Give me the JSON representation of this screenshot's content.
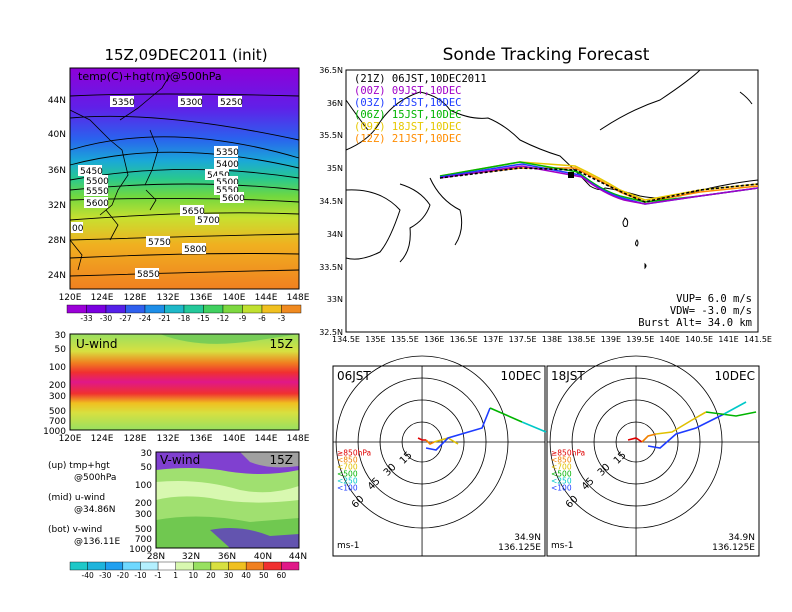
{
  "left_title": "15Z,09DEC2011 (init)",
  "right_title": "Sonde Tracking Forecast",
  "top_map": {
    "label": "temp(C)+hgt(m)@500hPa",
    "lat_ticks": [
      "44N",
      "40N",
      "36N",
      "32N",
      "28N",
      "24N"
    ],
    "lon_ticks": [
      "120E",
      "124E",
      "128E",
      "132E",
      "136E",
      "140E",
      "144E",
      "148E"
    ],
    "contour_labels": [
      "5350",
      "5300",
      "5250",
      "5350",
      "5400",
      "5450",
      "5500",
      "5550",
      "5600",
      "5450",
      "5500",
      "5550",
      "5600",
      "5650",
      "5700",
      "5750",
      "5800",
      "5850",
      "00",
      "5260"
    ]
  },
  "temp_colorbar": {
    "labels": [
      "-33",
      "-30",
      "-27",
      "-24",
      "-21",
      "-18",
      "-15",
      "-12",
      "-9",
      "-6",
      "-3"
    ],
    "colors": [
      "#9b00d8",
      "#7a00e0",
      "#5520e8",
      "#2f60ee",
      "#1e8ee8",
      "#1fb8c8",
      "#24c89a",
      "#40d060",
      "#7dd840",
      "#c0e030",
      "#f0c020",
      "#f08a20"
    ]
  },
  "uwind": {
    "label": "U-wind",
    "time": "15Z",
    "y_ticks": [
      "30",
      "50",
      "100",
      "200",
      "300",
      "500",
      "700",
      "1000"
    ],
    "x_ticks": [
      "120E",
      "124E",
      "128E",
      "132E",
      "136E",
      "140E",
      "144E",
      "148E"
    ]
  },
  "vwind": {
    "label": "V-wind",
    "time": "15Z",
    "y_ticks": [
      "30",
      "50",
      "100",
      "200",
      "300",
      "500",
      "700",
      "1000"
    ],
    "x_ticks": [
      "28N",
      "32N",
      "36N",
      "40N",
      "44N"
    ]
  },
  "legend_text": {
    "up": "(up) tmp+hgt",
    "up2": "@500hPa",
    "mid": "(mid) u-wind",
    "mid2": "@34.86N",
    "bot": "(bot) v-wind",
    "bot2": "@136.11E"
  },
  "wind_colorbar": {
    "labels": [
      "-40",
      "-30",
      "-20",
      "-10",
      "-1",
      "1",
      "10",
      "20",
      "30",
      "40",
      "50",
      "60"
    ],
    "colors": [
      "#1ec8c8",
      "#1eb4dc",
      "#20a0f0",
      "#6ed8ff",
      "#b4f0ff",
      "#ffffff",
      "#d8f8b0",
      "#98e060",
      "#d8e040",
      "#f0c020",
      "#f08020",
      "#f03030",
      "#e01888"
    ]
  },
  "track_map": {
    "lat_ticks": [
      "36.5N",
      "36N",
      "35.5N",
      "35N",
      "34.5N",
      "34N",
      "33.5N",
      "33N",
      "32.5N"
    ],
    "lon_ticks": [
      "134.5E",
      "135E",
      "135.5E",
      "136E",
      "136.5E",
      "137E",
      "137.5E",
      "138E",
      "138.5E",
      "139E",
      "139.5E",
      "140E",
      "140.5E",
      "141E",
      "141.5E"
    ],
    "legend": [
      {
        "text": "(21Z)  06JST,10DEC2011",
        "color": "#000000"
      },
      {
        "text": "(00Z)  09JST,10DEC",
        "color": "#a000c8"
      },
      {
        "text": "(03Z)  12JST,10DEC",
        "color": "#1e3cff"
      },
      {
        "text": "(06Z)  15JST,10DEC",
        "color": "#00b400"
      },
      {
        "text": "(09Z)  18JST,10DEC",
        "color": "#e6c800"
      },
      {
        "text": "(12Z)  21JST,10DEC",
        "color": "#ff8c00"
      }
    ],
    "info": [
      "VUP=  6.0 m/s",
      "VDW= -3.0 m/s",
      "Burst Alt= 34.0 km"
    ]
  },
  "hodo1": {
    "time": "06JST",
    "date": "10DEC",
    "rings": [
      "15",
      "30",
      "45",
      "60"
    ],
    "levels": [
      "≥850hPa",
      "<850",
      "<700",
      "<500",
      "<250",
      "<100"
    ],
    "level_colors": [
      "#e00000",
      "#f08000",
      "#e0c000",
      "#00b400",
      "#00c8c8",
      "#1e3cff"
    ],
    "unit": "ms-1",
    "lat": "34.9N",
    "lon": "136.125E"
  },
  "hodo2": {
    "time": "18JST",
    "date": "10DEC",
    "rings": [
      "15",
      "30",
      "45",
      "60"
    ],
    "levels": [
      "≥850hPa",
      "<850",
      "<700",
      "<500",
      "<250",
      "<100"
    ],
    "level_colors": [
      "#e00000",
      "#f08000",
      "#e0c000",
      "#00b400",
      "#00c8c8",
      "#1e3cff"
    ],
    "unit": "ms-1",
    "lat": "34.9N",
    "lon": "136.125E"
  }
}
